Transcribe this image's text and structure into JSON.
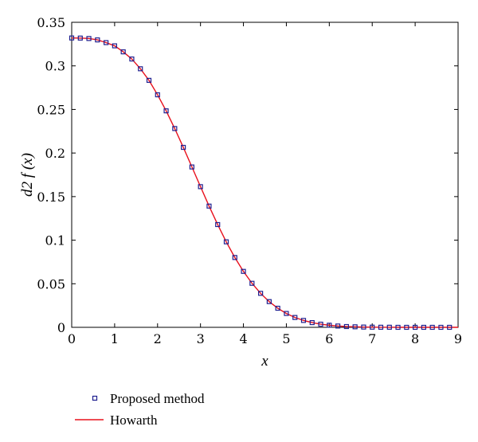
{
  "chart_data": {
    "type": "line",
    "title": "",
    "xlabel": "x",
    "ylabel": "d2 f (x)",
    "xlim": [
      0,
      9
    ],
    "ylim": [
      0,
      0.35
    ],
    "xticks": [
      "0",
      "1",
      "2",
      "3",
      "4",
      "5",
      "6",
      "7",
      "8",
      "9"
    ],
    "yticks": [
      "0",
      "0.05",
      "0.1",
      "0.15",
      "0.2",
      "0.25",
      "0.3",
      "0.35"
    ],
    "grid": false,
    "legend_position": "bottom-left",
    "series": [
      {
        "name": "Proposed method",
        "style": "markers",
        "marker": "square",
        "color": "#1f1f8f",
        "x": [
          0,
          0.2,
          0.4,
          0.6,
          0.8,
          1.0,
          1.2,
          1.4,
          1.6,
          1.8,
          2.0,
          2.2,
          2.4,
          2.6,
          2.8,
          3.0,
          3.2,
          3.4,
          3.6,
          3.8,
          4.0,
          4.2,
          4.4,
          4.6,
          4.8,
          5.0,
          5.2,
          5.4,
          5.6,
          5.8,
          6.0,
          6.2,
          6.4,
          6.6,
          6.8,
          7.0,
          7.2,
          7.4,
          7.6,
          7.8,
          8.0,
          8.2,
          8.4,
          8.6,
          8.8
        ],
        "y": [
          0.332,
          0.3319,
          0.3314,
          0.3298,
          0.3267,
          0.323,
          0.3161,
          0.3079,
          0.2967,
          0.2834,
          0.2668,
          0.2484,
          0.2281,
          0.2065,
          0.184,
          0.1614,
          0.1391,
          0.1179,
          0.0981,
          0.0801,
          0.0642,
          0.0505,
          0.039,
          0.0295,
          0.0219,
          0.0159,
          0.0113,
          0.0079,
          0.0054,
          0.0036,
          0.0024,
          0.0015,
          0.0009,
          0.0006,
          0.0003,
          0.0002,
          0.0001,
          0.0001,
          0.0,
          0.0,
          0.0,
          0.0,
          0.0,
          0.0,
          0.0
        ]
      },
      {
        "name": "Howarth",
        "style": "line",
        "color": "#e8101c",
        "x": [
          0,
          0.2,
          0.4,
          0.6,
          0.8,
          1.0,
          1.2,
          1.4,
          1.6,
          1.8,
          2.0,
          2.2,
          2.4,
          2.6,
          2.8,
          3.0,
          3.2,
          3.4,
          3.6,
          3.8,
          4.0,
          4.2,
          4.4,
          4.6,
          4.8,
          5.0,
          5.2,
          5.4,
          5.6,
          5.8,
          6.0,
          6.2,
          6.4,
          6.6,
          6.8,
          7.0,
          7.2,
          7.4,
          7.6,
          7.8,
          8.0,
          8.2,
          8.4,
          8.6,
          8.8,
          9.0
        ],
        "y": [
          0.332,
          0.3319,
          0.3314,
          0.3298,
          0.3267,
          0.323,
          0.3161,
          0.3079,
          0.2967,
          0.2834,
          0.2668,
          0.2484,
          0.2281,
          0.2065,
          0.184,
          0.1614,
          0.1391,
          0.1179,
          0.0981,
          0.0801,
          0.0642,
          0.0505,
          0.039,
          0.0295,
          0.0219,
          0.0159,
          0.0113,
          0.0079,
          0.0054,
          0.0036,
          0.0024,
          0.0015,
          0.0009,
          0.0006,
          0.0003,
          0.0002,
          0.0001,
          0.0001,
          0.0,
          0.0,
          0.0,
          0.0,
          0.0,
          0.0,
          0.0,
          0.0
        ]
      }
    ]
  }
}
